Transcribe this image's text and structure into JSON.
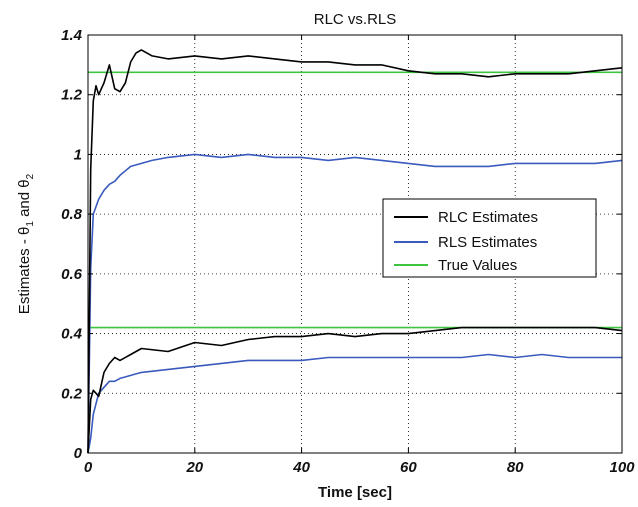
{
  "chart_data": {
    "type": "line",
    "title": "RLC vs.RLS",
    "xlabel": "Time [sec]",
    "ylabel": "Estimates - θ₁ and θ₂",
    "ylabel_parts": [
      "Estimates - ",
      "θ",
      "1",
      " and ",
      "θ",
      "2"
    ],
    "xlim": [
      0,
      100
    ],
    "ylim": [
      0,
      1.4
    ],
    "xticks": [
      0,
      20,
      40,
      60,
      80,
      100
    ],
    "xtick_labels": [
      "0",
      "20",
      "40",
      "60",
      "80",
      "100"
    ],
    "yticks": [
      0,
      0.2,
      0.4,
      0.6,
      0.8,
      1,
      1.2,
      1.4
    ],
    "ytick_labels": [
      "0",
      "0.2",
      "0.4",
      "0.6",
      "0.8",
      "1",
      "1.2",
      "1.4"
    ],
    "grid": "dotted",
    "legend_position": "center-right",
    "series": [
      {
        "name": "RLC Estimates",
        "color": "#000000",
        "curves": [
          {
            "x": [
              0,
              0.5,
              1,
              1.5,
              2,
              3,
              4,
              5,
              6,
              7,
              8,
              9,
              10,
              12,
              15,
              20,
              25,
              30,
              35,
              40,
              45,
              50,
              55,
              60,
              65,
              70,
              75,
              80,
              85,
              90,
              95,
              100
            ],
            "y": [
              0,
              0.95,
              1.18,
              1.23,
              1.2,
              1.24,
              1.3,
              1.22,
              1.21,
              1.24,
              1.31,
              1.34,
              1.35,
              1.33,
              1.32,
              1.33,
              1.32,
              1.33,
              1.32,
              1.31,
              1.31,
              1.3,
              1.3,
              1.28,
              1.27,
              1.27,
              1.26,
              1.27,
              1.27,
              1.27,
              1.28,
              1.29
            ]
          },
          {
            "x": [
              0,
              0.5,
              1,
              2,
              3,
              4,
              5,
              6,
              8,
              10,
              15,
              20,
              25,
              30,
              35,
              40,
              45,
              50,
              55,
              60,
              65,
              70,
              75,
              80,
              85,
              90,
              95,
              100
            ],
            "y": [
              0,
              0.18,
              0.21,
              0.19,
              0.27,
              0.3,
              0.32,
              0.31,
              0.33,
              0.35,
              0.34,
              0.37,
              0.36,
              0.38,
              0.39,
              0.39,
              0.4,
              0.39,
              0.4,
              0.4,
              0.41,
              0.42,
              0.42,
              0.42,
              0.42,
              0.42,
              0.42,
              0.41
            ]
          }
        ]
      },
      {
        "name": "RLS Estimates",
        "color": "#3a5bbd",
        "curves": [
          {
            "x": [
              0,
              0.5,
              1,
              2,
              3,
              4,
              5,
              6,
              8,
              10,
              12,
              15,
              20,
              25,
              30,
              35,
              40,
              45,
              50,
              55,
              60,
              65,
              70,
              75,
              80,
              85,
              90,
              95,
              100
            ],
            "y": [
              0,
              0.62,
              0.8,
              0.85,
              0.88,
              0.9,
              0.91,
              0.93,
              0.96,
              0.97,
              0.98,
              0.99,
              1.0,
              0.99,
              1.0,
              0.99,
              0.99,
              0.98,
              0.99,
              0.98,
              0.97,
              0.96,
              0.96,
              0.96,
              0.97,
              0.97,
              0.97,
              0.97,
              0.98
            ]
          },
          {
            "x": [
              0,
              0.5,
              1,
              2,
              3,
              4,
              5,
              6,
              8,
              10,
              15,
              20,
              25,
              30,
              35,
              40,
              45,
              50,
              55,
              60,
              65,
              70,
              75,
              80,
              85,
              90,
              95,
              100
            ],
            "y": [
              0,
              0.05,
              0.13,
              0.2,
              0.22,
              0.24,
              0.24,
              0.25,
              0.26,
              0.27,
              0.28,
              0.29,
              0.3,
              0.31,
              0.31,
              0.31,
              0.32,
              0.32,
              0.32,
              0.32,
              0.32,
              0.32,
              0.33,
              0.32,
              0.33,
              0.32,
              0.32,
              0.32
            ]
          }
        ]
      },
      {
        "name": "True Values",
        "color": "#3fc43f",
        "curves": [
          {
            "x": [
              0,
              100
            ],
            "y": [
              1.275,
              1.275
            ]
          },
          {
            "x": [
              0,
              100
            ],
            "y": [
              0.42,
              0.42
            ]
          }
        ]
      }
    ]
  }
}
